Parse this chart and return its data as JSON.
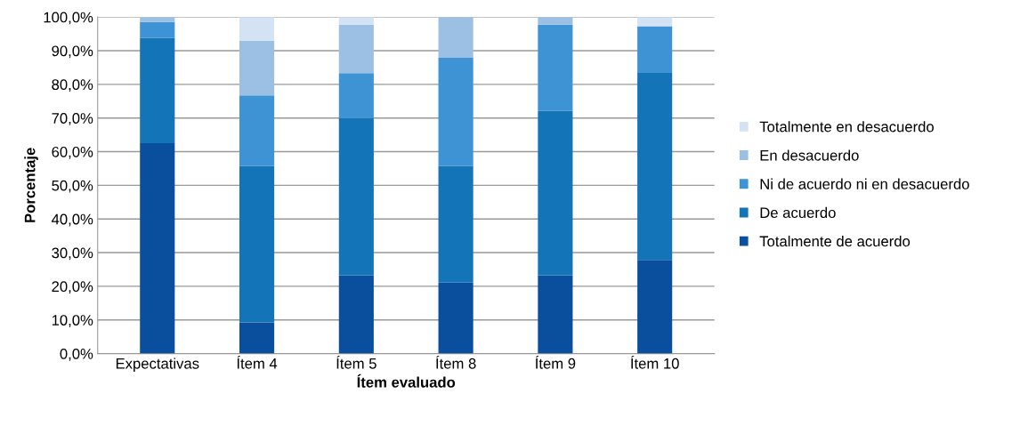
{
  "chart_data": {
    "type": "bar",
    "stacked": true,
    "xlabel": "Ítem evaluado",
    "ylabel": "Porcentaje",
    "categories": [
      "Expectativas",
      "Ítem 4",
      "Ítem 5",
      "Ítem 8",
      "Ítem 9",
      "Ítem 10"
    ],
    "series": [
      {
        "name": "Totalmente de acuerdo",
        "color": "#0a4f9e",
        "values": [
          62.5,
          9.3,
          23.3,
          21.1,
          23.3,
          27.8
        ]
      },
      {
        "name": "De acuerdo",
        "color": "#1474b8",
        "values": [
          31.3,
          46.5,
          46.7,
          34.7,
          48.8,
          55.6
        ]
      },
      {
        "name": "Ni de acuerdo ni en desacuerdo",
        "color": "#3d93d3",
        "values": [
          4.7,
          20.9,
          13.3,
          32.1,
          25.6,
          13.9
        ]
      },
      {
        "name": "En desacuerdo",
        "color": "#9cbfe4",
        "values": [
          1.5,
          16.3,
          14.4,
          12.1,
          2.3,
          0
        ]
      },
      {
        "name": "Totalmente en desacuerdo",
        "color": "#d3e2f4",
        "values": [
          0,
          7.0,
          2.3,
          0,
          0,
          2.7
        ]
      }
    ],
    "ylim": [
      0,
      100
    ],
    "yticks": [
      {
        "value": 0,
        "label": "0,0%"
      },
      {
        "value": 10,
        "label": "10,0%"
      },
      {
        "value": 20,
        "label": "20,0%"
      },
      {
        "value": 30,
        "label": "30,0%"
      },
      {
        "value": 40,
        "label": "40,0%"
      },
      {
        "value": 50,
        "label": "50,0%"
      },
      {
        "value": 60,
        "label": "60,0%"
      },
      {
        "value": 70,
        "label": "70,0%"
      },
      {
        "value": 80,
        "label": "80,0%"
      },
      {
        "value": 90,
        "label": "90,0%"
      },
      {
        "value": 100,
        "label": "100,0%"
      }
    ],
    "grid": "y",
    "legend": "right"
  }
}
